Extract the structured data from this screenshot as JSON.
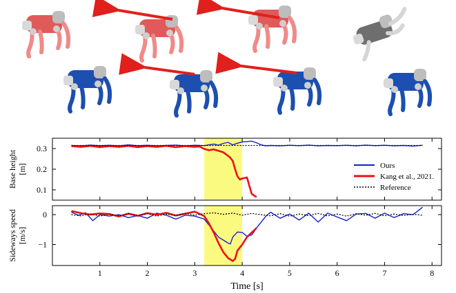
{
  "colors": {
    "ours": "#1020d0",
    "kang": "#ee1010",
    "reference": "#000000",
    "highlight": "#fbfa80",
    "robot_ours": "#1c4fb0",
    "robot_kang": "#e05a5a",
    "robot_body_gray": "#cfcfcf",
    "arrow": "#e0201c"
  },
  "illustration": {
    "robot_rows": 2,
    "robot_columns": 4,
    "icon": "quadruped-robot-icon"
  },
  "chart_data": [
    {
      "type": "line",
      "xlabel": "",
      "ylabel": [
        "Base height",
        "[m]"
      ],
      "xlim": [
        0.0,
        8.2
      ],
      "ylim": [
        0.05,
        0.35
      ],
      "yticks": [
        0.1,
        0.2,
        0.3
      ],
      "ytick_labels": [
        "0.1",
        "0.2",
        "0.3"
      ],
      "highlight_span": [
        3.2,
        4.0
      ],
      "legend_position": "right",
      "series": [
        {
          "name": "Ours",
          "x": [
            0.4,
            0.6,
            0.8,
            1.0,
            1.2,
            1.4,
            1.6,
            1.8,
            2.0,
            2.2,
            2.4,
            2.6,
            2.8,
            3.0,
            3.2,
            3.3,
            3.4,
            3.5,
            3.6,
            3.7,
            3.8,
            3.9,
            4.0,
            4.1,
            4.2,
            4.3,
            4.4,
            4.5,
            4.6,
            4.8,
            5.0,
            5.2,
            5.4,
            5.6,
            5.8,
            6.0,
            6.2,
            6.4,
            6.6,
            6.8,
            7.0,
            7.2,
            7.4,
            7.6,
            7.8
          ],
          "y": [
            0.315,
            0.313,
            0.317,
            0.314,
            0.316,
            0.313,
            0.318,
            0.314,
            0.316,
            0.313,
            0.315,
            0.317,
            0.313,
            0.316,
            0.314,
            0.318,
            0.322,
            0.316,
            0.325,
            0.33,
            0.318,
            0.326,
            0.332,
            0.334,
            0.336,
            0.328,
            0.318,
            0.313,
            0.315,
            0.313,
            0.316,
            0.314,
            0.317,
            0.313,
            0.315,
            0.314,
            0.316,
            0.313,
            0.317,
            0.314,
            0.316,
            0.313,
            0.315,
            0.312,
            0.316
          ]
        },
        {
          "name": "Kang et al., 2021.",
          "x": [
            0.4,
            0.6,
            0.8,
            1.0,
            1.2,
            1.4,
            1.6,
            1.8,
            2.0,
            2.2,
            2.4,
            2.6,
            2.8,
            3.0,
            3.1,
            3.2,
            3.3,
            3.4,
            3.5,
            3.6,
            3.7,
            3.75,
            3.8,
            3.85,
            3.9,
            3.95,
            4.0,
            4.1,
            4.15,
            4.2,
            4.3
          ],
          "y": [
            0.312,
            0.308,
            0.313,
            0.307,
            0.312,
            0.308,
            0.313,
            0.307,
            0.312,
            0.308,
            0.313,
            0.307,
            0.312,
            0.308,
            0.31,
            0.298,
            0.292,
            0.296,
            0.289,
            0.282,
            0.265,
            0.255,
            0.24,
            0.2,
            0.165,
            0.15,
            0.155,
            0.16,
            0.12,
            0.08,
            0.065
          ]
        },
        {
          "name": "Reference",
          "x": [
            0.4,
            7.8
          ],
          "y": [
            0.315,
            0.315
          ]
        }
      ]
    },
    {
      "type": "line",
      "xlabel": "Time [s]",
      "ylabel": [
        "Sideways speed",
        "[m/s]"
      ],
      "xlim": [
        0.0,
        8.2
      ],
      "ylim": [
        -1.7,
        0.3
      ],
      "yticks": [
        -1,
        0
      ],
      "ytick_labels": [
        "−1",
        "0"
      ],
      "xticks": [
        1,
        2,
        3,
        4,
        5,
        6,
        7,
        8
      ],
      "xtick_labels": [
        "1",
        "2",
        "3",
        "4",
        "5",
        "6",
        "7",
        "8"
      ],
      "highlight_span": [
        3.2,
        4.0
      ],
      "series": [
        {
          "name": "Ours",
          "x": [
            0.4,
            0.55,
            0.7,
            0.85,
            1.0,
            1.2,
            1.4,
            1.6,
            1.8,
            2.0,
            2.2,
            2.4,
            2.6,
            2.8,
            3.0,
            3.2,
            3.3,
            3.4,
            3.5,
            3.6,
            3.7,
            3.75,
            3.8,
            3.9,
            4.0,
            4.1,
            4.2,
            4.3,
            4.4,
            4.5,
            4.6,
            4.8,
            5.0,
            5.2,
            5.4,
            5.6,
            5.8,
            6.0,
            6.2,
            6.4,
            6.6,
            6.8,
            7.0,
            7.2,
            7.4,
            7.6,
            7.7,
            7.8
          ],
          "y": [
            0.08,
            -0.02,
            0.06,
            -0.2,
            0.0,
            -0.05,
            0.0,
            -0.1,
            -0.03,
            -0.12,
            0.05,
            -0.02,
            -0.15,
            -0.02,
            -0.05,
            -0.15,
            -0.35,
            -0.55,
            -0.75,
            -0.85,
            -0.95,
            -0.98,
            -0.75,
            -0.58,
            -0.6,
            -0.72,
            -0.68,
            -0.45,
            -0.25,
            -0.05,
            0.08,
            -0.12,
            0.02,
            -0.18,
            0.05,
            -0.25,
            0.05,
            -0.08,
            -0.2,
            0.02,
            0.04,
            -0.12,
            0.05,
            -0.1,
            0.03,
            0.0,
            0.12,
            0.25
          ]
        },
        {
          "name": "Kang et al., 2021.",
          "x": [
            0.4,
            0.6,
            0.8,
            1.0,
            1.2,
            1.4,
            1.6,
            1.8,
            2.0,
            2.2,
            2.4,
            2.6,
            2.8,
            3.0,
            3.2,
            3.3,
            3.4,
            3.5,
            3.6,
            3.7,
            3.8,
            3.85,
            3.9,
            4.0,
            4.1,
            4.2,
            4.3
          ],
          "y": [
            0.12,
            0.05,
            0.0,
            0.04,
            0.02,
            -0.06,
            0.03,
            -0.04,
            0.05,
            0.0,
            0.06,
            -0.03,
            0.03,
            0.1,
            -0.05,
            -0.3,
            -0.6,
            -0.95,
            -1.25,
            -1.45,
            -1.55,
            -1.48,
            -1.2,
            -1.0,
            -0.75,
            -0.6,
            -0.45
          ]
        },
        {
          "name": "Reference",
          "x": [
            0.4,
            0.6,
            0.8,
            1.0,
            1.2,
            1.4,
            1.6,
            1.8,
            2.0,
            2.2,
            2.4,
            2.6,
            2.8,
            3.0,
            3.2,
            3.4,
            3.6,
            3.8,
            4.0,
            4.2,
            4.4,
            4.6,
            4.8,
            5.0,
            5.2,
            5.4,
            5.6,
            5.8,
            6.0,
            6.2,
            6.4,
            6.6,
            6.8,
            7.0,
            7.2,
            7.4,
            7.6,
            7.8
          ],
          "y": [
            0.0,
            -0.04,
            0.03,
            -0.05,
            0.02,
            -0.04,
            0.04,
            -0.03,
            0.03,
            -0.05,
            0.02,
            -0.03,
            0.04,
            -0.02,
            0.03,
            0.06,
            0.01,
            0.05,
            -0.02,
            0.04,
            0.0,
            -0.04,
            0.03,
            -0.05,
            0.02,
            -0.03,
            0.04,
            -0.04,
            0.02,
            -0.05,
            0.03,
            -0.02,
            0.04,
            -0.04,
            0.02,
            -0.03,
            0.01,
            -0.02
          ]
        }
      ]
    }
  ]
}
